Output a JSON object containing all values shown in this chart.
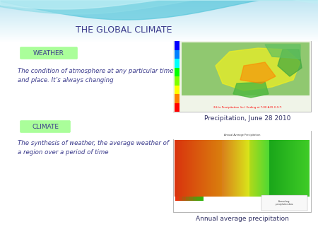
{
  "title": "THE GLOBAL CLIMATE",
  "title_color": "#3B3B8C",
  "title_fontsize": 9,
  "weather_label": "WEATHER",
  "weather_box_color": "#AAFE9A",
  "weather_text": "The condition of atmosphere at any particular time\nand place. It’s always changing",
  "climate_label": "CLIMATE",
  "climate_box_color": "#AAFE9A",
  "climate_text": "The synthesis of weather, the average weather of\na region over a period of time",
  "precip_caption": "Precipitation, June 28 2010",
  "annual_caption": "Annual average precipitation",
  "label_text_color": "#3B3B8C",
  "body_text_color": "#3B3B8C",
  "caption_color": "#333366",
  "wave1_color": "#7BD8E8",
  "wave2_color": "#A8E8F0",
  "wave3_color": "#C8F0F8"
}
